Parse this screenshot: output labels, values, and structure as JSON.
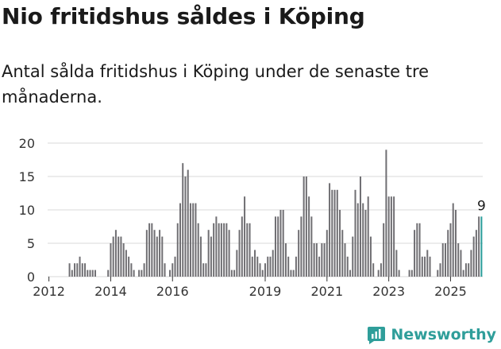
{
  "header": {
    "title": "Nio fritidshus såldes i Köping",
    "subtitle": "Antal sålda fritidshus i Köping under de senaste tre månaderna."
  },
  "brand": {
    "name": "Newsworthy",
    "icon": "newsworthy-chart-icon",
    "color": "#2f9e9a"
  },
  "colors": {
    "bar": "#706f73",
    "highlight": "#2a9d9a",
    "grid": "#d9d9d9"
  },
  "chart_data": {
    "type": "bar",
    "title": "Nio fritidshus såldes i Köping",
    "subtitle": "Antal sålda fritidshus i Köping under de senaste tre månaderna.",
    "xlabel": "",
    "ylabel": "",
    "ylim": [
      0,
      20
    ],
    "yticks": [
      0,
      5,
      10,
      15,
      20
    ],
    "start": "2011-12",
    "xticks": [
      {
        "label": "2012",
        "index": 0
      },
      {
        "label": "2014",
        "index": 24
      },
      {
        "label": "2016",
        "index": 48
      },
      {
        "label": "2019",
        "index": 84
      },
      {
        "label": "2021",
        "index": 108
      },
      {
        "label": "2023",
        "index": 132
      },
      {
        "label": "2025",
        "index": 156
      }
    ],
    "grid": true,
    "legend": "none",
    "annotation": {
      "label": "9",
      "value": 9
    },
    "values": [
      0,
      0,
      0,
      0,
      0,
      0,
      0,
      0,
      2,
      1,
      2,
      2,
      3,
      2,
      2,
      1,
      1,
      1,
      1,
      0,
      0,
      0,
      0,
      1,
      5,
      6,
      7,
      6,
      6,
      5,
      4,
      3,
      2,
      1,
      0,
      1,
      1,
      2,
      7,
      8,
      8,
      7,
      6,
      7,
      6,
      2,
      0,
      1,
      2,
      3,
      8,
      11,
      17,
      15,
      16,
      11,
      11,
      11,
      8,
      6,
      2,
      2,
      7,
      6,
      8,
      9,
      8,
      8,
      8,
      8,
      7,
      1,
      1,
      4,
      7,
      9,
      12,
      8,
      8,
      3,
      4,
      3,
      2,
      1,
      2,
      3,
      3,
      4,
      9,
      9,
      10,
      10,
      5,
      3,
      1,
      1,
      3,
      7,
      9,
      15,
      15,
      12,
      9,
      5,
      5,
      3,
      5,
      5,
      7,
      14,
      13,
      13,
      13,
      10,
      7,
      5,
      3,
      1,
      6,
      13,
      11,
      15,
      11,
      10,
      12,
      6,
      2,
      0,
      1,
      2,
      8,
      19,
      12,
      12,
      12,
      4,
      1,
      0,
      0,
      0,
      1,
      1,
      7,
      8,
      8,
      3,
      3,
      4,
      3,
      0,
      0,
      1,
      2,
      5,
      5,
      7,
      8,
      11,
      10,
      5,
      4,
      1,
      2,
      2,
      4,
      6,
      7,
      9,
      9
    ]
  }
}
